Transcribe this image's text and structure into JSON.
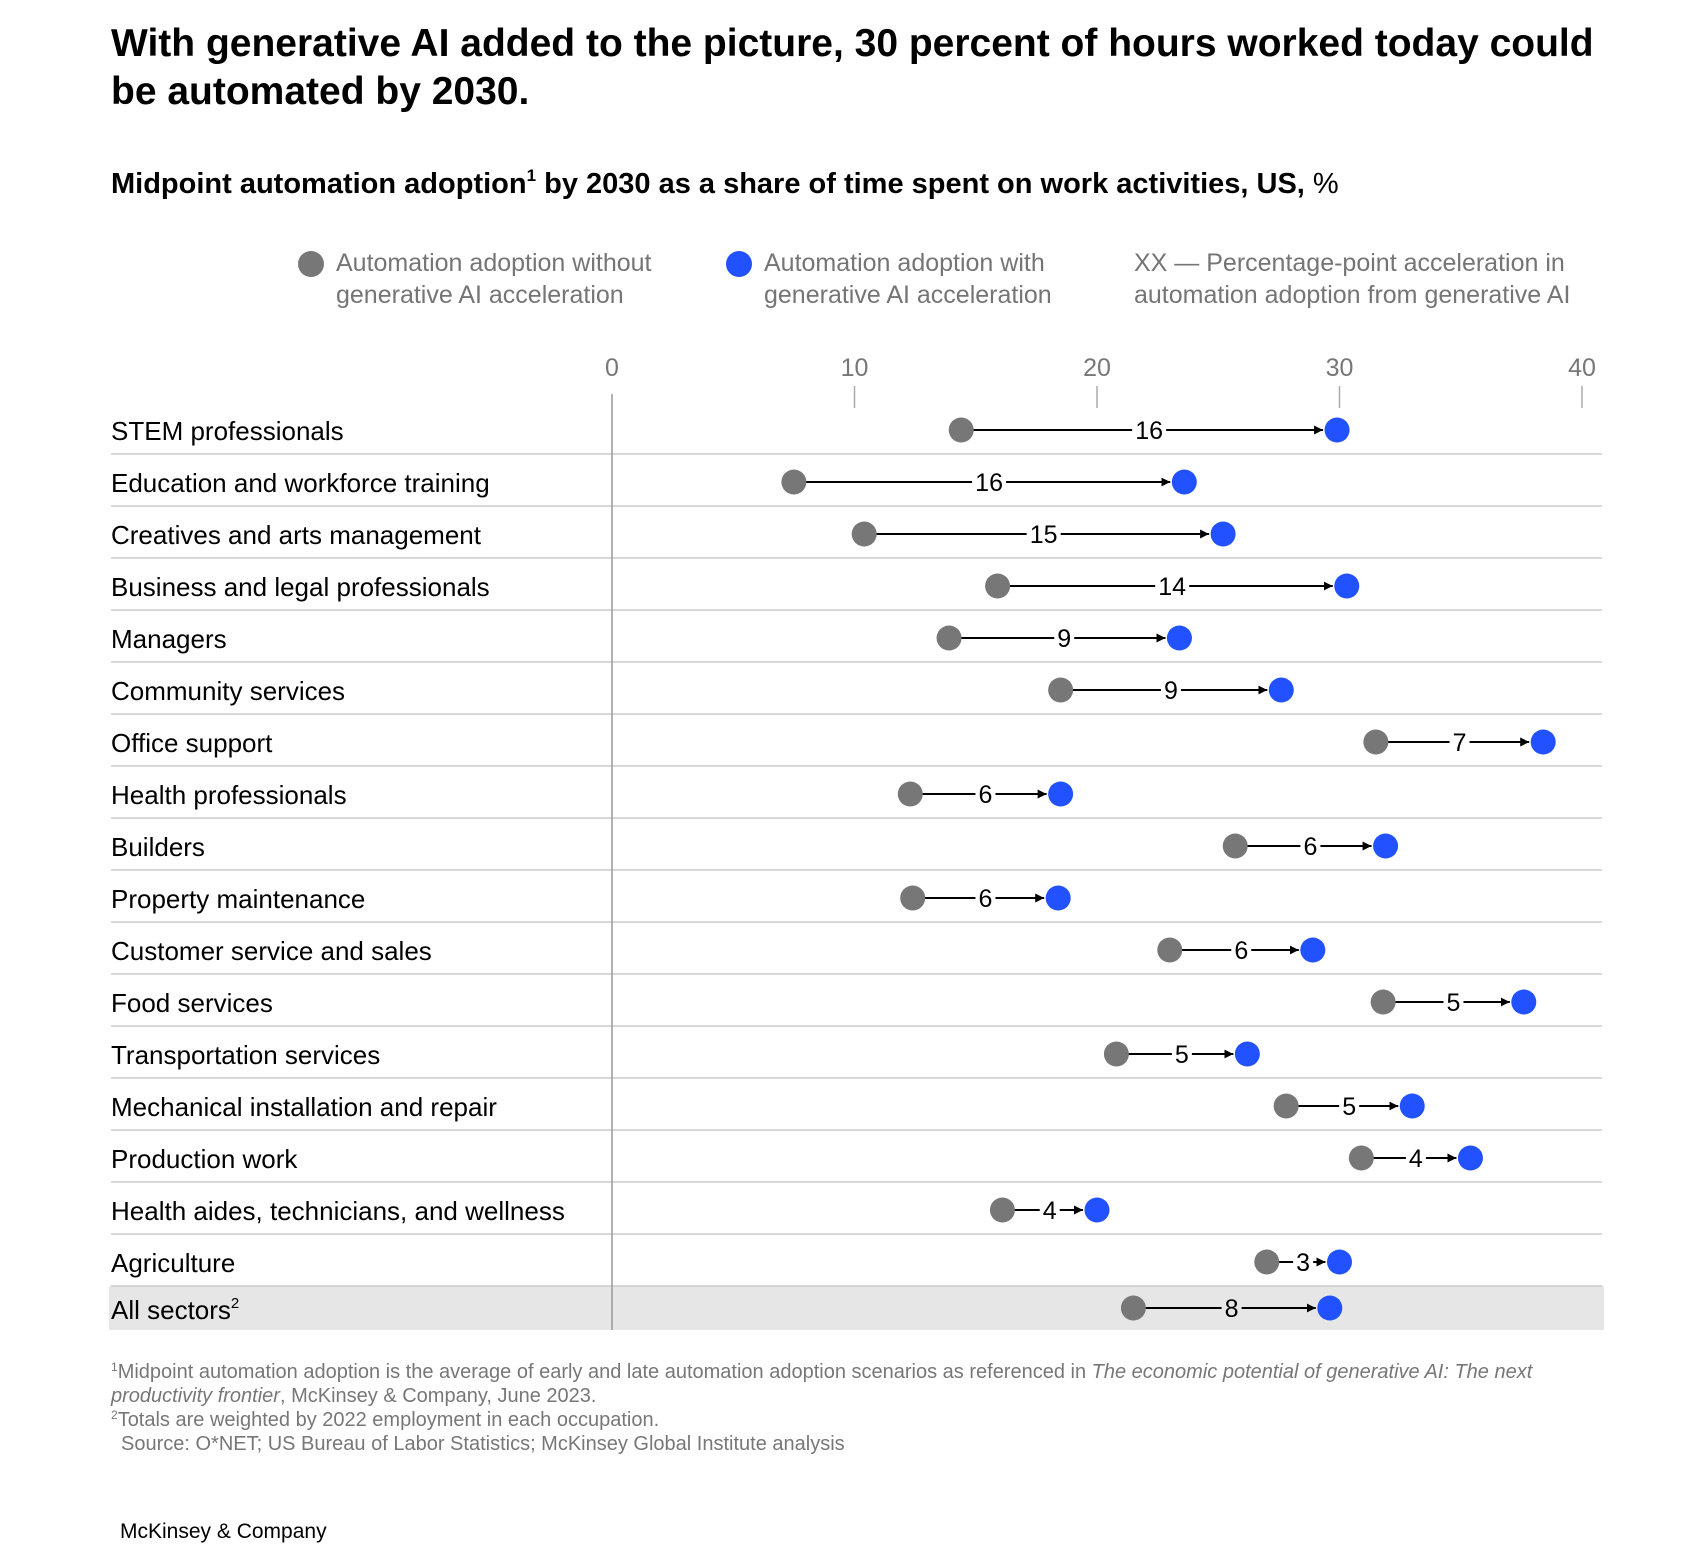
{
  "title": "With generative AI added to the picture, 30 percent of hours worked today could be automated by 2030.",
  "subtitle": {
    "main": "Midpoint automation adoption",
    "sup": "1",
    "rest": " by 2030 as a share of time spent on work activities, US,",
    "unit": " %"
  },
  "legend": {
    "without": "Automation adoption without generative AI acceleration",
    "with": "Automation adoption with generative AI acceleration",
    "note": "XX — Percentage-point acceleration in automation adoption from generative AI"
  },
  "colors": {
    "without": "#777777",
    "with": "#2251ff",
    "total_row_bg": "#e6e6e6",
    "grid": "#cccccc"
  },
  "chart_data": {
    "type": "dumbbell",
    "title": "Midpoint automation adoption by 2030 as a share of time spent on work activities, US, %",
    "x_ticks": [
      0,
      10,
      20,
      30,
      40
    ],
    "xlim": [
      0,
      40
    ],
    "series_names": [
      "Automation adoption without generative AI acceleration",
      "Automation adoption with generative AI acceleration"
    ],
    "rows": [
      {
        "label": "STEM professionals",
        "label_sup": "",
        "without": 14.4,
        "with": 29.9,
        "acceleration": "16",
        "total": false
      },
      {
        "label": "Education and workforce training",
        "label_sup": "",
        "without": 7.5,
        "with": 23.6,
        "acceleration": "16",
        "total": false
      },
      {
        "label": "Creatives and arts management",
        "label_sup": "",
        "without": 10.4,
        "with": 25.2,
        "acceleration": "15",
        "total": false
      },
      {
        "label": "Business and legal professionals",
        "label_sup": "",
        "without": 15.9,
        "with": 30.3,
        "acceleration": "14",
        "total": false
      },
      {
        "label": "Managers",
        "label_sup": "",
        "without": 13.9,
        "with": 23.4,
        "acceleration": "9",
        "total": false
      },
      {
        "label": "Community services",
        "label_sup": "",
        "without": 18.5,
        "with": 27.6,
        "acceleration": "9",
        "total": false
      },
      {
        "label": "Office support",
        "label_sup": "",
        "without": 31.5,
        "with": 38.4,
        "acceleration": "7",
        "total": false
      },
      {
        "label": "Health professionals",
        "label_sup": "",
        "without": 12.3,
        "with": 18.5,
        "acceleration": "6",
        "total": false
      },
      {
        "label": "Builders",
        "label_sup": "",
        "without": 25.7,
        "with": 31.9,
        "acceleration": "6",
        "total": false
      },
      {
        "label": "Property maintenance",
        "label_sup": "",
        "without": 12.4,
        "with": 18.4,
        "acceleration": "6",
        "total": false
      },
      {
        "label": "Customer service and sales",
        "label_sup": "",
        "without": 23.0,
        "with": 28.9,
        "acceleration": "6",
        "total": false
      },
      {
        "label": "Food services",
        "label_sup": "",
        "without": 31.8,
        "with": 37.6,
        "acceleration": "5",
        "total": false
      },
      {
        "label": "Transportation services",
        "label_sup": "",
        "without": 20.8,
        "with": 26.2,
        "acceleration": "5",
        "total": false
      },
      {
        "label": "Mechanical installation and repair",
        "label_sup": "",
        "without": 27.8,
        "with": 33.0,
        "acceleration": "5",
        "total": false
      },
      {
        "label": "Production work",
        "label_sup": "",
        "without": 30.9,
        "with": 35.4,
        "acceleration": "4",
        "total": false
      },
      {
        "label": "Health aides, technicians, and wellness",
        "label_sup": "",
        "without": 16.1,
        "with": 20.0,
        "acceleration": "4",
        "total": false
      },
      {
        "label": "Agriculture",
        "label_sup": "",
        "without": 27.0,
        "with": 30.0,
        "acceleration": "3",
        "total": false
      },
      {
        "label": "All sectors",
        "label_sup": "2",
        "without": 21.5,
        "with": 29.6,
        "acceleration": "8",
        "total": true
      }
    ]
  },
  "footnotes": {
    "note1_sup": "1",
    "note1_text": "Midpoint automation adoption is the average of early and late automation adoption scenarios as referenced in ",
    "note1_italic": "The economic potential of generative AI: The next productivity frontier",
    "note1_end": ", McKinsey & Company, June 2023.",
    "note2_sup": "2",
    "note2_text": "Totals are weighted by 2022 employment in each occupation.",
    "source": "Source: O*NET; US Bureau of Labor Statistics; McKinsey Global Institute analysis"
  },
  "brand": "McKinsey & Company"
}
